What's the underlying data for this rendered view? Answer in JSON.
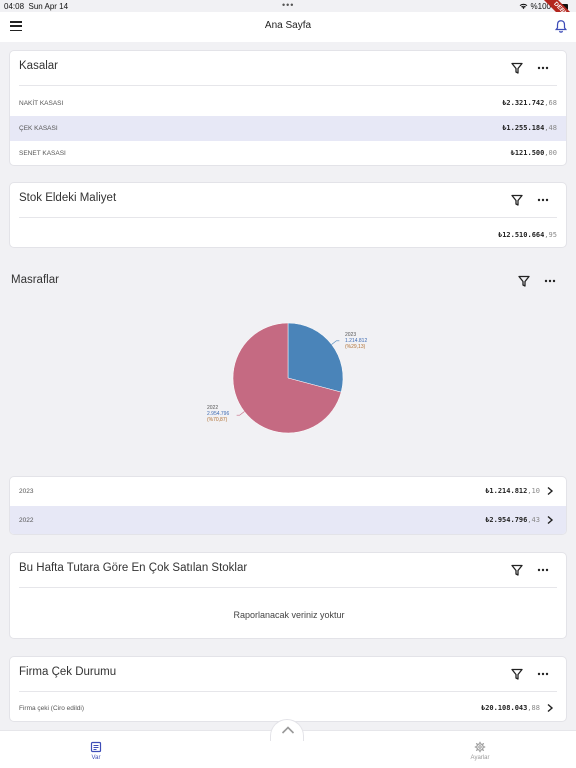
{
  "status_bar": {
    "time": "04:08",
    "date": "Sun Apr 14",
    "battery": "%100"
  },
  "debug_banner": "DEBUG",
  "app_bar": {
    "title": "Ana Sayfa"
  },
  "kasalar": {
    "title": "Kasalar",
    "rows": [
      {
        "label": "NAKİT KASASI",
        "value": "₺2.321.742",
        "decimal": ",68",
        "highlight": false
      },
      {
        "label": "ÇEK KASASI",
        "value": "₺1.255.184",
        "decimal": ",48",
        "highlight": true
      },
      {
        "label": "SENET KASASI",
        "value": "₺121.500",
        "decimal": ",00",
        "highlight": false
      }
    ]
  },
  "stok": {
    "title": "Stok Eldeki Maliyet",
    "value": "₺12.510.664",
    "decimal": ",95"
  },
  "masraflar": {
    "title": "Masraflar",
    "rows": [
      {
        "label": "2023",
        "value": "₺1.214.812",
        "decimal": ",10"
      },
      {
        "label": "2022",
        "value": "₺2.954.796",
        "decimal": ",43"
      }
    ]
  },
  "chart_data": {
    "type": "pie",
    "title": "",
    "slices": [
      {
        "label": "2023",
        "value": 1214812,
        "display": "1.214.812",
        "percent": "(%29,13)",
        "color": "#4a84b9"
      },
      {
        "label": "2022",
        "value": 2954796,
        "display": "2.954.796",
        "percent": "(%70,87)",
        "color": "#c56a82"
      }
    ]
  },
  "en_cok_satilan": {
    "title": "Bu Hafta Tutara Göre En Çok Satılan Stoklar",
    "empty_text": "Raporlanacak veriniz yoktur"
  },
  "firma_cek": {
    "title": "Firma Çek Durumu",
    "rows": [
      {
        "label": "Firma çeki (Ciro edildi)",
        "value": "₺20.108.043",
        "decimal": ",88"
      }
    ]
  },
  "bottom_nav": {
    "items": [
      {
        "label": "Var",
        "active": true
      },
      {
        "label": "Ayarlar",
        "active": false
      }
    ]
  },
  "colors": {
    "accent": "#3d4cb7",
    "highlight_row": "#e7e8f6"
  }
}
